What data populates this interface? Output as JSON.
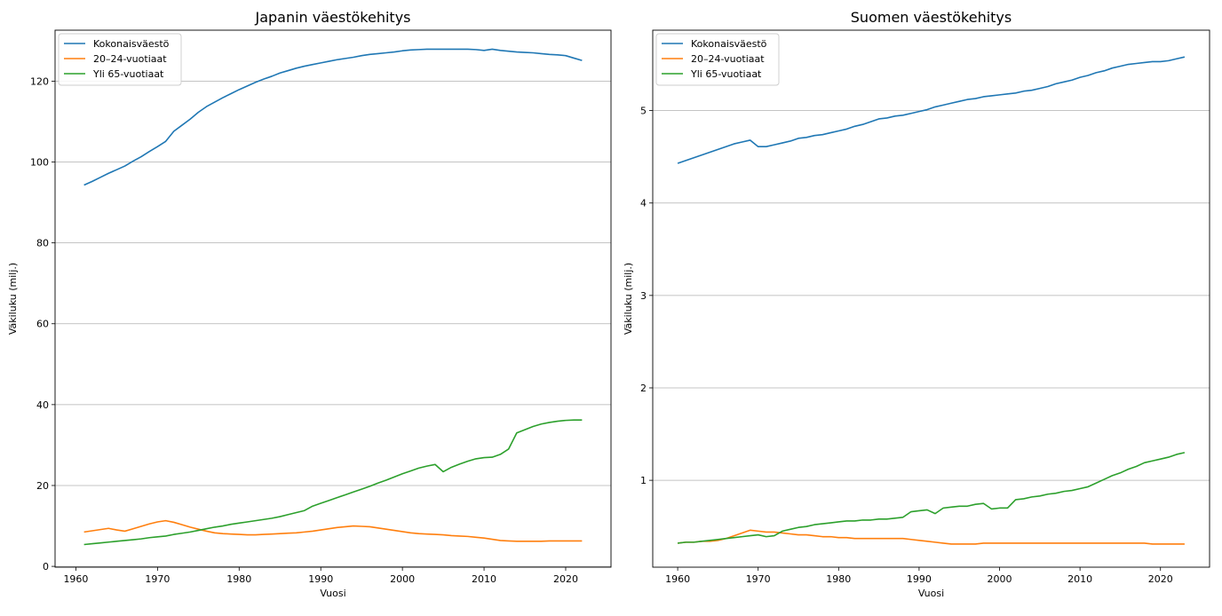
{
  "chart_data": [
    {
      "type": "line",
      "title": "Japanin väestökehitys",
      "xlabel": "Vuosi",
      "ylabel": "Väkiluku (milj.)",
      "xlim": [
        1957.45,
        2025.55
      ],
      "ylim": [
        -0.2,
        132.6
      ],
      "xticks": [
        1960,
        1970,
        1980,
        1990,
        2000,
        2010,
        2020
      ],
      "yticks": [
        0,
        20,
        40,
        60,
        80,
        100,
        120
      ],
      "ytick_labels": [
        "0",
        "20",
        "40",
        "60",
        "80",
        "100",
        "120"
      ],
      "grid": "y",
      "legend": "top-left",
      "colors": [
        "#1f77b4",
        "#ff7f0e",
        "#2ca02c"
      ],
      "series": [
        {
          "name": "Kokonaisväestö",
          "x": [
            1961,
            1962,
            1963,
            1964,
            1965,
            1966,
            1967,
            1968,
            1969,
            1970,
            1971,
            1972,
            1973,
            1974,
            1975,
            1976,
            1977,
            1978,
            1979,
            1980,
            1981,
            1982,
            1983,
            1984,
            1985,
            1986,
            1987,
            1988,
            1989,
            1990,
            1991,
            1992,
            1993,
            1994,
            1995,
            1996,
            1997,
            1998,
            1999,
            2000,
            2001,
            2002,
            2003,
            2004,
            2005,
            2006,
            2007,
            2008,
            2009,
            2010,
            2011,
            2012,
            2013,
            2014,
            2015,
            2016,
            2017,
            2018,
            2019,
            2020,
            2021,
            2022
          ],
          "y": [
            94.3,
            95.2,
            96.2,
            97.2,
            98.1,
            99.0,
            100.2,
            101.3,
            102.6,
            103.8,
            105.1,
            107.6,
            109.1,
            110.6,
            112.3,
            113.7,
            114.8,
            115.9,
            116.9,
            117.9,
            118.8,
            119.7,
            120.5,
            121.2,
            122.0,
            122.6,
            123.2,
            123.7,
            124.1,
            124.5,
            124.9,
            125.3,
            125.6,
            125.9,
            126.3,
            126.6,
            126.8,
            127.0,
            127.2,
            127.5,
            127.7,
            127.8,
            127.9,
            127.9,
            127.9,
            127.9,
            127.9,
            127.9,
            127.8,
            127.6,
            127.9,
            127.6,
            127.4,
            127.2,
            127.1,
            127.0,
            126.8,
            126.6,
            126.5,
            126.3,
            125.7,
            125.1
          ]
        },
        {
          "name": "20–24-vuotiaat",
          "x": [
            1961,
            1962,
            1963,
            1964,
            1965,
            1966,
            1967,
            1968,
            1969,
            1970,
            1971,
            1972,
            1973,
            1974,
            1975,
            1976,
            1977,
            1978,
            1979,
            1980,
            1981,
            1982,
            1983,
            1984,
            1985,
            1986,
            1987,
            1988,
            1989,
            1990,
            1991,
            1992,
            1993,
            1994,
            1995,
            1996,
            1997,
            1998,
            1999,
            2000,
            2001,
            2002,
            2003,
            2004,
            2005,
            2006,
            2007,
            2008,
            2009,
            2010,
            2011,
            2012,
            2013,
            2014,
            2015,
            2016,
            2017,
            2018,
            2019,
            2020,
            2021,
            2022
          ],
          "y": [
            8.5,
            8.8,
            9.1,
            9.4,
            9.0,
            8.7,
            9.3,
            9.9,
            10.5,
            11.0,
            11.3,
            10.9,
            10.3,
            9.7,
            9.2,
            8.7,
            8.3,
            8.1,
            8.0,
            7.9,
            7.8,
            7.8,
            7.9,
            8.0,
            8.1,
            8.2,
            8.3,
            8.5,
            8.7,
            9.0,
            9.3,
            9.6,
            9.8,
            10.0,
            9.9,
            9.8,
            9.5,
            9.2,
            8.9,
            8.6,
            8.3,
            8.1,
            8.0,
            7.9,
            7.8,
            7.6,
            7.5,
            7.4,
            7.2,
            7.0,
            6.7,
            6.4,
            6.3,
            6.2,
            6.2,
            6.2,
            6.2,
            6.3,
            6.3,
            6.3,
            6.3,
            6.3
          ]
        },
        {
          "name": "Yli 65-vuotiaat",
          "x": [
            1961,
            1962,
            1963,
            1964,
            1965,
            1966,
            1967,
            1968,
            1969,
            1970,
            1971,
            1972,
            1973,
            1974,
            1975,
            1976,
            1977,
            1978,
            1979,
            1980,
            1981,
            1982,
            1983,
            1984,
            1985,
            1986,
            1987,
            1988,
            1989,
            1990,
            1991,
            1992,
            1993,
            1994,
            1995,
            1996,
            1997,
            1998,
            1999,
            2000,
            2001,
            2002,
            2003,
            2004,
            2005,
            2006,
            2007,
            2008,
            2009,
            2010,
            2011,
            2012,
            2013,
            2014,
            2015,
            2016,
            2017,
            2018,
            2019,
            2020,
            2021,
            2022
          ],
          "y": [
            5.4,
            5.6,
            5.8,
            6.0,
            6.2,
            6.4,
            6.6,
            6.8,
            7.1,
            7.3,
            7.5,
            7.9,
            8.2,
            8.5,
            8.9,
            9.3,
            9.7,
            10.0,
            10.4,
            10.7,
            11.0,
            11.3,
            11.6,
            11.9,
            12.3,
            12.8,
            13.3,
            13.8,
            14.9,
            15.6,
            16.3,
            17.0,
            17.7,
            18.4,
            19.1,
            19.8,
            20.6,
            21.3,
            22.1,
            22.9,
            23.6,
            24.3,
            24.8,
            25.2,
            23.4,
            24.5,
            25.3,
            26.0,
            26.6,
            26.9,
            27.0,
            27.7,
            29.0,
            33.0,
            33.8,
            34.6,
            35.2,
            35.6,
            35.9,
            36.1,
            36.2,
            36.2
          ]
        }
      ]
    },
    {
      "type": "line",
      "title": "Suomen väestökehitys",
      "xlabel": "Vuosi",
      "ylabel": "Väkiluku (milj.)",
      "xlim": [
        1956.9,
        2026.1
      ],
      "ylim": [
        0.06,
        5.87
      ],
      "xticks": [
        1960,
        1970,
        1980,
        1990,
        2000,
        2010,
        2020
      ],
      "yticks": [
        1,
        2,
        3,
        4,
        5
      ],
      "ytick_labels": [
        "1",
        "2",
        "3",
        "4",
        "5"
      ],
      "grid": "y",
      "legend": "top-left",
      "colors": [
        "#1f77b4",
        "#ff7f0e",
        "#2ca02c"
      ],
      "series": [
        {
          "name": "Kokonaisväestö",
          "x": [
            1960,
            1961,
            1962,
            1963,
            1964,
            1965,
            1966,
            1967,
            1968,
            1969,
            1970,
            1971,
            1972,
            1973,
            1974,
            1975,
            1976,
            1977,
            1978,
            1979,
            1980,
            1981,
            1982,
            1983,
            1984,
            1985,
            1986,
            1987,
            1988,
            1989,
            1990,
            1991,
            1992,
            1993,
            1994,
            1995,
            1996,
            1997,
            1998,
            1999,
            2000,
            2001,
            2002,
            2003,
            2004,
            2005,
            2006,
            2007,
            2008,
            2009,
            2010,
            2011,
            2012,
            2013,
            2014,
            2015,
            2016,
            2017,
            2018,
            2019,
            2020,
            2021,
            2022,
            2023
          ],
          "y": [
            4.43,
            4.46,
            4.49,
            4.52,
            4.55,
            4.58,
            4.61,
            4.64,
            4.66,
            4.68,
            4.61,
            4.61,
            4.63,
            4.65,
            4.67,
            4.7,
            4.71,
            4.73,
            4.74,
            4.76,
            4.78,
            4.8,
            4.83,
            4.85,
            4.88,
            4.91,
            4.92,
            4.94,
            4.95,
            4.97,
            4.99,
            5.01,
            5.04,
            5.06,
            5.08,
            5.1,
            5.12,
            5.13,
            5.15,
            5.16,
            5.17,
            5.18,
            5.19,
            5.21,
            5.22,
            5.24,
            5.26,
            5.29,
            5.31,
            5.33,
            5.36,
            5.38,
            5.41,
            5.43,
            5.46,
            5.48,
            5.5,
            5.51,
            5.52,
            5.53,
            5.53,
            5.54,
            5.56,
            5.58
          ]
        },
        {
          "name": "20–24-vuotiaat",
          "x": [
            1960,
            1961,
            1962,
            1963,
            1964,
            1965,
            1966,
            1967,
            1968,
            1969,
            1970,
            1971,
            1972,
            1973,
            1974,
            1975,
            1976,
            1977,
            1978,
            1979,
            1980,
            1981,
            1982,
            1983,
            1984,
            1985,
            1986,
            1987,
            1988,
            1989,
            1990,
            1991,
            1992,
            1993,
            1994,
            1995,
            1996,
            1997,
            1998,
            1999,
            2000,
            2001,
            2002,
            2003,
            2004,
            2005,
            2006,
            2007,
            2008,
            2009,
            2010,
            2011,
            2012,
            2013,
            2014,
            2015,
            2016,
            2017,
            2018,
            2019,
            2020,
            2021,
            2022,
            2023
          ],
          "y": [
            0.32,
            0.33,
            0.33,
            0.34,
            0.34,
            0.35,
            0.37,
            0.4,
            0.43,
            0.46,
            0.45,
            0.44,
            0.44,
            0.43,
            0.42,
            0.41,
            0.41,
            0.4,
            0.39,
            0.39,
            0.38,
            0.38,
            0.37,
            0.37,
            0.37,
            0.37,
            0.37,
            0.37,
            0.37,
            0.36,
            0.35,
            0.34,
            0.33,
            0.32,
            0.31,
            0.31,
            0.31,
            0.31,
            0.32,
            0.32,
            0.32,
            0.32,
            0.32,
            0.32,
            0.32,
            0.32,
            0.32,
            0.32,
            0.32,
            0.32,
            0.32,
            0.32,
            0.32,
            0.32,
            0.32,
            0.32,
            0.32,
            0.32,
            0.32,
            0.31,
            0.31,
            0.31,
            0.31,
            0.31
          ]
        },
        {
          "name": "Yli 65-vuotiaat",
          "x": [
            1960,
            1961,
            1962,
            1963,
            1964,
            1965,
            1966,
            1967,
            1968,
            1969,
            1970,
            1971,
            1972,
            1973,
            1974,
            1975,
            1976,
            1977,
            1978,
            1979,
            1980,
            1981,
            1982,
            1983,
            1984,
            1985,
            1986,
            1987,
            1988,
            1989,
            1990,
            1991,
            1992,
            1993,
            1994,
            1995,
            1996,
            1997,
            1998,
            1999,
            2000,
            2001,
            2002,
            2003,
            2004,
            2005,
            2006,
            2007,
            2008,
            2009,
            2010,
            2011,
            2012,
            2013,
            2014,
            2015,
            2016,
            2017,
            2018,
            2019,
            2020,
            2021,
            2022,
            2023
          ],
          "y": [
            0.32,
            0.33,
            0.33,
            0.34,
            0.35,
            0.36,
            0.37,
            0.38,
            0.39,
            0.4,
            0.41,
            0.39,
            0.4,
            0.45,
            0.47,
            0.49,
            0.5,
            0.52,
            0.53,
            0.54,
            0.55,
            0.56,
            0.56,
            0.57,
            0.57,
            0.58,
            0.58,
            0.59,
            0.6,
            0.66,
            0.67,
            0.68,
            0.64,
            0.7,
            0.71,
            0.72,
            0.72,
            0.74,
            0.75,
            0.69,
            0.7,
            0.7,
            0.79,
            0.8,
            0.82,
            0.83,
            0.85,
            0.86,
            0.88,
            0.89,
            0.91,
            0.93,
            0.97,
            1.01,
            1.05,
            1.08,
            1.12,
            1.15,
            1.19,
            1.21,
            1.23,
            1.25,
            1.28,
            1.3
          ]
        }
      ]
    }
  ]
}
